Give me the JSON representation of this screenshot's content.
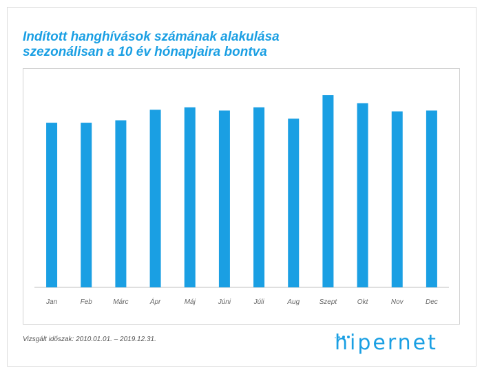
{
  "chart_data": {
    "type": "bar",
    "title": "Indított hanghívások számának alakulása szezonálisan a 10 év hónapjaira bontva",
    "title_line1": "Indított hanghívások számának alakulása",
    "title_line2": "szezonálisan a 10 év hónapjaira bontva",
    "categories": [
      "Jan",
      "Feb",
      "Márc",
      "Ápr",
      "Máj",
      "Júni",
      "Júli",
      "Aug",
      "Szept",
      "Okt",
      "Nov",
      "Dec"
    ],
    "values": [
      203,
      203,
      206,
      219,
      222,
      218,
      222,
      208,
      237,
      227,
      217,
      218
    ],
    "ylim": [
      0,
      260
    ],
    "xlabel": "",
    "ylabel": "",
    "grid": false,
    "legend": "none",
    "bar_color": "#1a9fe3"
  },
  "footnote": "Vizsgált időszak: 2010.01.01. – 2019.12.31.",
  "logo": {
    "text": "hipernet",
    "color": "#1a9fe3"
  }
}
